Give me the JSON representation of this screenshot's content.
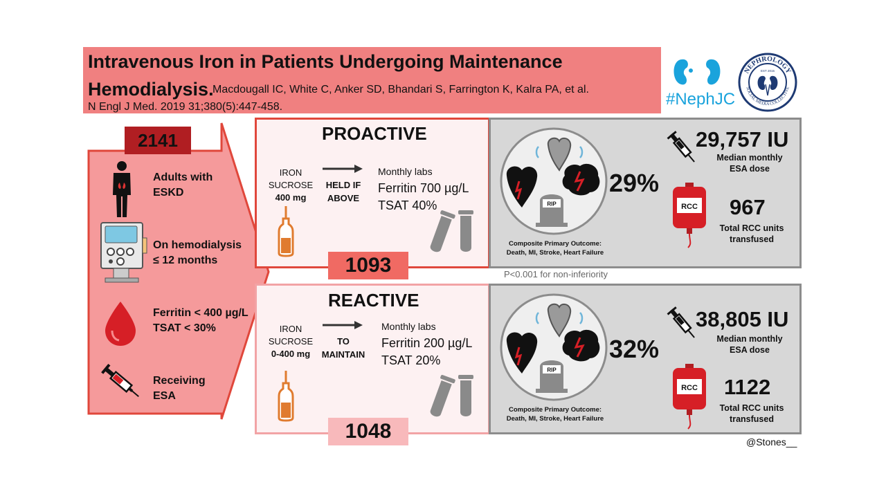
{
  "title": {
    "line1": "Intravenous Iron in Patients Undergoing Maintenance",
    "line2": "Hemodialysis.",
    "authors": "Macdougall IC, White C, Anker SD, Bhandari S, Farrington K, Kalra PA, et al.",
    "reference": "N Engl J Med. 2019 31;380(5):447-458."
  },
  "logos": {
    "hashtag": "#NephJC",
    "seal_text": "NEPHROLOGY SOCIAL MEDIA COLLECTIVE EST 2015"
  },
  "population": {
    "total": "2141",
    "criteria": [
      {
        "line1": "Adults with",
        "line2": "ESKD",
        "icon": "person-icon"
      },
      {
        "line1": "On hemodialysis",
        "line2": "≤ 12 months",
        "icon": "dialysis-machine-icon"
      },
      {
        "line1": "Ferritin < 400 µg/L",
        "line2": "TSAT < 30%",
        "icon": "blood-drop-icon"
      },
      {
        "line1": "Receiving",
        "line2": "ESA",
        "icon": "syringe-icon"
      }
    ]
  },
  "proactive": {
    "title": "PROACTIVE",
    "drug_line1": "IRON",
    "drug_line2": "SUCROSE",
    "dose": "400 mg",
    "rule_line1": "HELD IF",
    "rule_line2": "ABOVE",
    "labs": "Monthly labs",
    "ferritin": "Ferritin 700 µg/L",
    "tsat": "TSAT 40%",
    "count": "1093",
    "outcome_pct": "29%",
    "outcome_line1": "Composite Primary Outcome:",
    "outcome_line2": "Death, MI, Stroke, Heart Failure",
    "tombstone": "RIP",
    "esa_dose": "29,757 IU",
    "esa_line1": "Median monthly",
    "esa_line2": "ESA dose",
    "rcc_label": "RCC",
    "rcc_units": "967",
    "rcc_line1": "Total RCC units",
    "rcc_line2": "transfused"
  },
  "p_value": "P<0.001 for non-inferiority",
  "reactive": {
    "title": "REACTIVE",
    "drug_line1": "IRON",
    "drug_line2": "SUCROSE",
    "dose": "0-400 mg",
    "rule_line1": "TO",
    "rule_line2": "MAINTAIN",
    "labs": "Monthly labs",
    "ferritin": "Ferritin 200 µg/L",
    "tsat": "TSAT 20%",
    "count": "1048",
    "outcome_pct": "32%",
    "outcome_line1": "Composite Primary Outcome:",
    "outcome_line2": "Death, MI, Stroke, Heart Failure",
    "tombstone": "RIP",
    "esa_dose": "38,805 IU",
    "esa_line1": "Median monthly",
    "esa_line2": "ESA dose",
    "rcc_label": "RCC",
    "rcc_units": "1122",
    "rcc_line1": "Total RCC units",
    "rcc_line2": "transfused"
  },
  "credit": "@Stones__",
  "colors": {
    "banner": "#f08080",
    "arrow_fill": "#f59a9b",
    "arrow_stroke": "#e0473b",
    "dark_red": "#b01e22",
    "proactive_count_bg": "#f06a63",
    "reactive_count_bg": "#f8b9bb",
    "gray_panel": "#d7d7d7",
    "gray_border": "#8c8c8c",
    "ampule": "#e07b2f"
  }
}
